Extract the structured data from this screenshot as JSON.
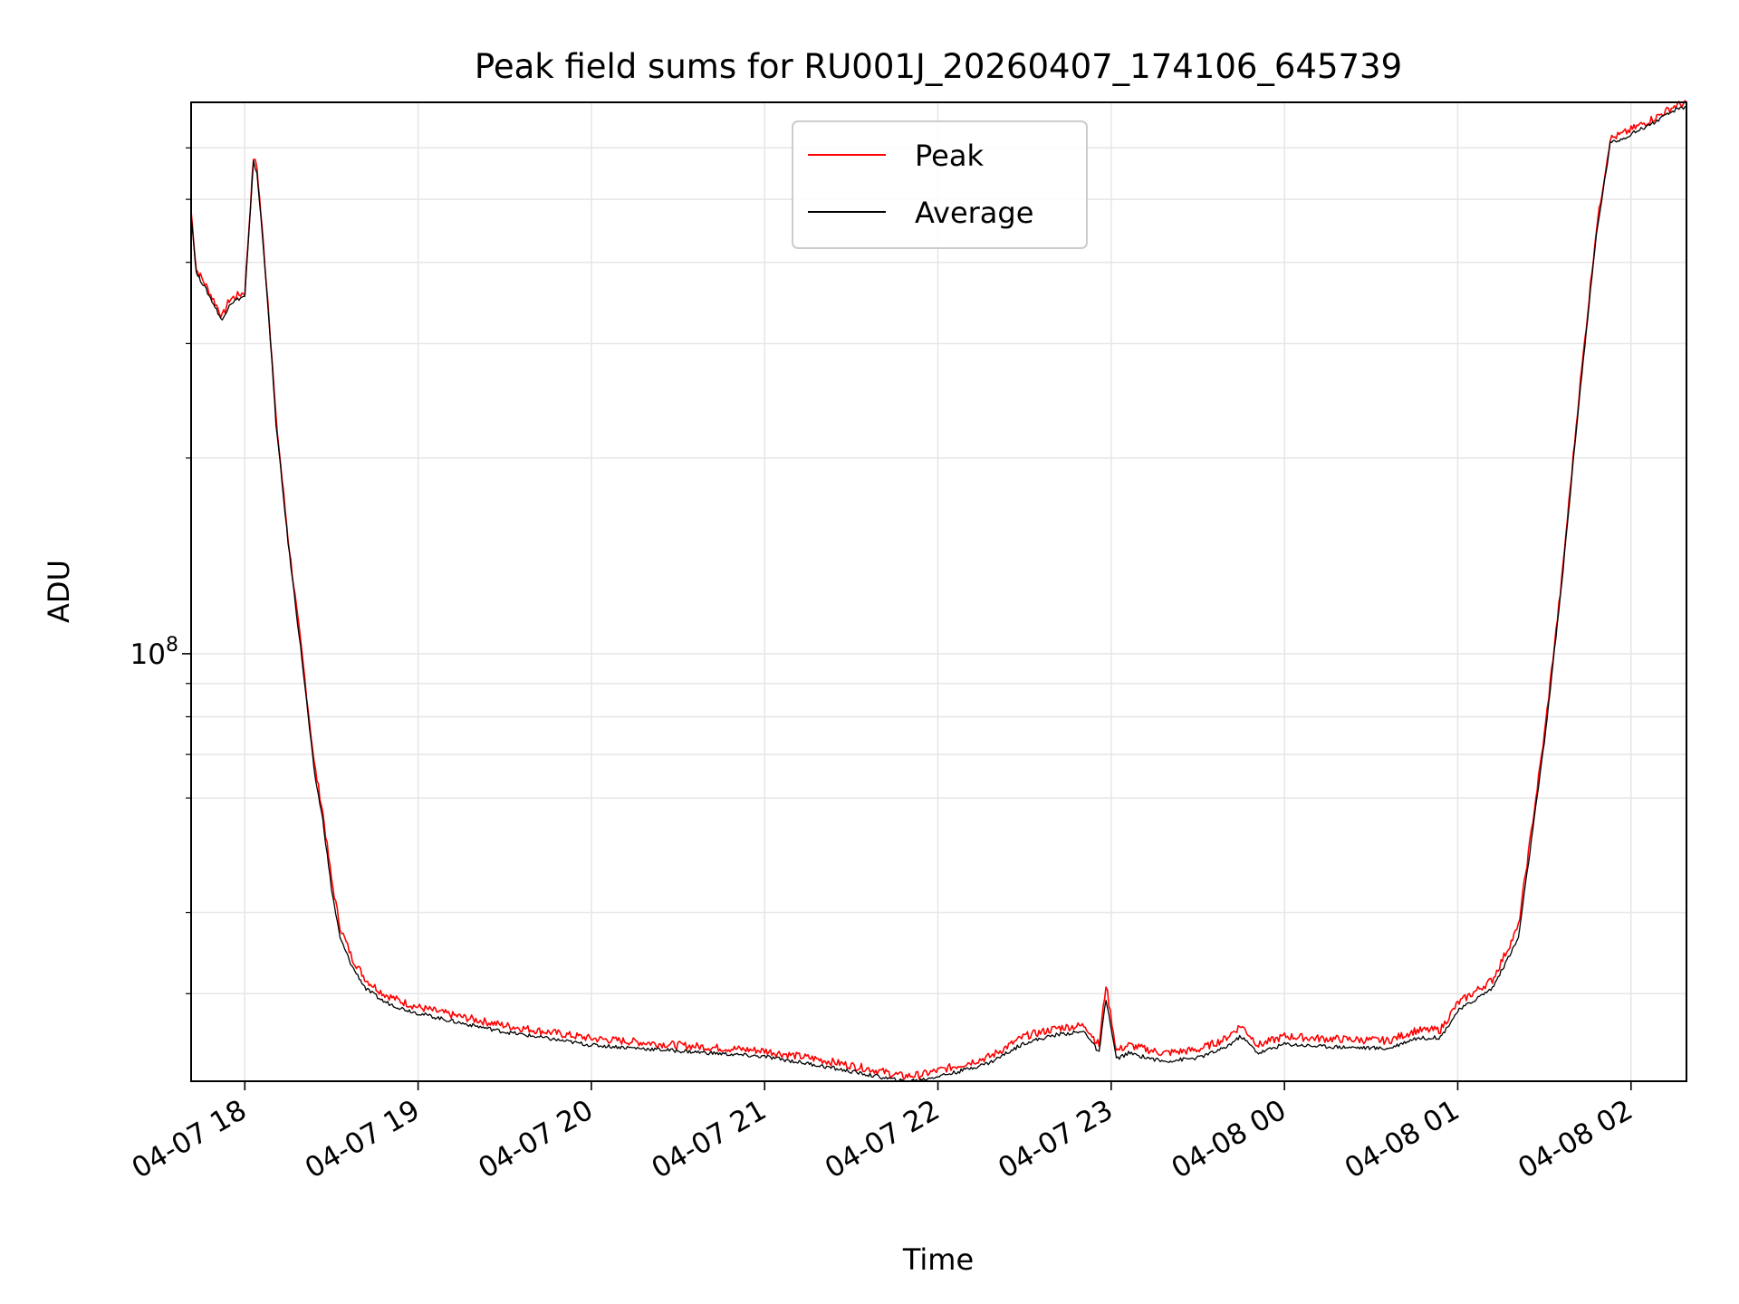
{
  "chart_data": {
    "type": "line",
    "title": "Peak field sums for RU001J_20260407_174106_645739",
    "xlabel": "Time",
    "ylabel": "ADU",
    "yscale": "log",
    "grid": true,
    "legend": "upper center",
    "x_unit": "hours since 2026-04-07 00:00",
    "xlim": [
      17.69,
      26.32
    ],
    "ylim": [
      22000000.0,
      705000000.0
    ],
    "x_ticks": [
      {
        "x": 18,
        "label": "04-07 18"
      },
      {
        "x": 19,
        "label": "04-07 19"
      },
      {
        "x": 20,
        "label": "04-07 20"
      },
      {
        "x": 21,
        "label": "04-07 21"
      },
      {
        "x": 22,
        "label": "04-07 22"
      },
      {
        "x": 23,
        "label": "04-07 23"
      },
      {
        "x": 24,
        "label": "04-08 00"
      },
      {
        "x": 25,
        "label": "04-08 01"
      },
      {
        "x": 26,
        "label": "04-08 02"
      }
    ],
    "y_major_ticks": [
      {
        "value": 100000000,
        "base": "10",
        "exponent": "8"
      }
    ],
    "y_minor_ticks": [
      30000000,
      40000000,
      60000000,
      70000000,
      80000000,
      90000000,
      200000000,
      300000000,
      400000000,
      500000000,
      600000000
    ],
    "series": [
      {
        "name": "Peak",
        "color": "#ff0000",
        "x": [
          17.69,
          17.72,
          17.76,
          17.82,
          17.87,
          17.91,
          17.95,
          18.0,
          18.05,
          18.07,
          18.1,
          18.14,
          18.18,
          18.25,
          18.33,
          18.4,
          18.45,
          18.5,
          18.55,
          18.62,
          18.7,
          18.8,
          18.9,
          19.0,
          19.2,
          19.5,
          20.0,
          20.5,
          21.0,
          21.3,
          21.6,
          21.8,
          21.9,
          22.1,
          22.3,
          22.5,
          22.7,
          22.85,
          22.93,
          22.97,
          23.03,
          23.1,
          23.3,
          23.5,
          23.65,
          23.75,
          23.85,
          24.0,
          24.2,
          24.4,
          24.6,
          24.75,
          24.9,
          25.0,
          25.2,
          25.35,
          25.5,
          25.6,
          25.7,
          25.8,
          25.88,
          25.95,
          26.05,
          26.15,
          26.25,
          26.32
        ],
        "values": [
          480000000,
          390000000,
          375000000,
          350000000,
          330000000,
          350000000,
          355000000,
          360000000,
          580000000,
          560000000,
          450000000,
          330000000,
          230000000,
          150000000,
          100000000,
          68000000,
          57000000,
          45000000,
          38000000,
          34000000,
          31500000,
          30000000,
          29200000,
          28600000,
          27800000,
          26800000,
          25600000,
          25000000,
          24500000,
          23800000,
          23000000,
          22400000,
          22500000,
          23200000,
          24000000,
          25800000,
          26600000,
          26800000,
          25000000,
          31000000,
          24500000,
          25000000,
          24300000,
          24600000,
          25500000,
          26800000,
          25000000,
          25800000,
          25600000,
          25500000,
          25400000,
          26300000,
          26400000,
          29000000,
          31500000,
          38000000,
          75000000,
          130000000,
          250000000,
          450000000,
          620000000,
          630000000,
          650000000,
          670000000,
          695000000,
          705000000
        ]
      },
      {
        "name": "Average",
        "color": "#000000",
        "x": [
          17.69,
          17.72,
          17.76,
          17.82,
          17.87,
          17.91,
          17.95,
          18.0,
          18.05,
          18.07,
          18.1,
          18.14,
          18.18,
          18.25,
          18.33,
          18.4,
          18.45,
          18.5,
          18.55,
          18.62,
          18.7,
          18.8,
          18.9,
          19.0,
          19.2,
          19.5,
          20.0,
          20.5,
          21.0,
          21.3,
          21.6,
          21.8,
          21.9,
          22.1,
          22.3,
          22.5,
          22.7,
          22.85,
          22.93,
          22.97,
          23.03,
          23.1,
          23.3,
          23.5,
          23.65,
          23.75,
          23.85,
          24.0,
          24.2,
          24.4,
          24.6,
          24.75,
          24.9,
          25.0,
          25.2,
          25.35,
          25.5,
          25.6,
          25.7,
          25.8,
          25.88,
          25.95,
          26.05,
          26.15,
          26.25,
          26.32
        ],
        "values": [
          475000000,
          385000000,
          370000000,
          345000000,
          325000000,
          345000000,
          350000000,
          355000000,
          570000000,
          550000000,
          445000000,
          325000000,
          226000000,
          148000000,
          98000000,
          66000000,
          55500000,
          43500000,
          36500000,
          33000000,
          30500000,
          29200000,
          28500000,
          28000000,
          27200000,
          26200000,
          25000000,
          24500000,
          24000000,
          23300000,
          22500000,
          22000000,
          22100000,
          22700000,
          23500000,
          25200000,
          26000000,
          26200000,
          24300000,
          29500000,
          23800000,
          24300000,
          23600000,
          23900000,
          24700000,
          25800000,
          24300000,
          25100000,
          24900000,
          24800000,
          24700000,
          25600000,
          25700000,
          28200000,
          30600000,
          36500000,
          73000000,
          128000000,
          245000000,
          440000000,
          610000000,
          620000000,
          640000000,
          660000000,
          685000000,
          695000000
        ]
      }
    ]
  }
}
